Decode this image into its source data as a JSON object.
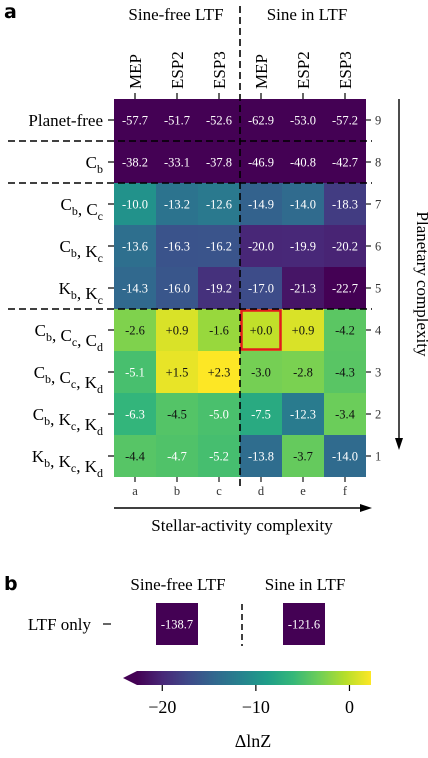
{
  "colors": {
    "viridis": [
      "#440154",
      "#482878",
      "#3e4a89",
      "#31688e",
      "#26828e",
      "#1f9e89",
      "#35b779",
      "#6ece58",
      "#b5de2b",
      "#fde725"
    ],
    "highlight": "#e41a1c",
    "text_on_dark": "#ffffff",
    "text_on_light": "#111111"
  },
  "chart_data": [
    {
      "type": "heatmap",
      "panel_label": "a",
      "group_labels": [
        "Sine-free LTF",
        "Sine in LTF"
      ],
      "column_labels": [
        "MEP",
        "ESP2",
        "ESP3",
        "MEP",
        "ESP2",
        "ESP3"
      ],
      "column_letters": [
        "a",
        "b",
        "c",
        "d",
        "e",
        "f"
      ],
      "row_labels": [
        "Planet-free",
        "Cb",
        "Cb, Cc",
        "Cb, Kc",
        "Kb, Kc",
        "Cb, Cc, Cd",
        "Cb, Cc, Kd",
        "Cb, Kc, Kd",
        "Kb, Kc, Kd"
      ],
      "row_label_parts": [
        [
          [
            "Planet-free",
            ""
          ]
        ],
        [
          [
            "C",
            "b"
          ]
        ],
        [
          [
            "C",
            "b"
          ],
          [
            "C",
            "c"
          ]
        ],
        [
          [
            "C",
            "b"
          ],
          [
            "K",
            "c"
          ]
        ],
        [
          [
            "K",
            "b"
          ],
          [
            "K",
            "c"
          ]
        ],
        [
          [
            "C",
            "b"
          ],
          [
            "C",
            "c"
          ],
          [
            "C",
            "d"
          ]
        ],
        [
          [
            "C",
            "b"
          ],
          [
            "C",
            "c"
          ],
          [
            "K",
            "d"
          ]
        ],
        [
          [
            "C",
            "b"
          ],
          [
            "K",
            "c"
          ],
          [
            "K",
            "d"
          ]
        ],
        [
          [
            "K",
            "b"
          ],
          [
            "K",
            "c"
          ],
          [
            "K",
            "d"
          ]
        ]
      ],
      "row_numbers": [
        "9",
        "8",
        "7",
        "6",
        "5",
        "4",
        "3",
        "2",
        "1"
      ],
      "values": [
        [
          -57.7,
          -51.7,
          -52.6,
          -62.9,
          -53.0,
          -57.2
        ],
        [
          -38.2,
          -33.1,
          -37.8,
          -46.9,
          -40.8,
          -42.7
        ],
        [
          -10.0,
          -13.2,
          -12.6,
          -14.9,
          -14.0,
          -18.3
        ],
        [
          -13.6,
          -16.3,
          -16.2,
          -20.0,
          -19.9,
          -20.2
        ],
        [
          -14.3,
          -16.0,
          -19.2,
          -17.0,
          -21.3,
          -22.7
        ],
        [
          -2.6,
          0.9,
          -1.6,
          0.0,
          0.9,
          -4.2
        ],
        [
          -5.1,
          1.5,
          2.3,
          -3.0,
          -2.8,
          -4.3
        ],
        [
          -6.3,
          -4.5,
          -5.0,
          -7.5,
          -12.3,
          -3.4
        ],
        [
          -4.4,
          -4.7,
          -5.2,
          -13.8,
          -3.7,
          -14.0
        ]
      ],
      "labels": [
        [
          "-57.7",
          "-51.7",
          "-52.6",
          "-62.9",
          "-53.0",
          "-57.2"
        ],
        [
          "-38.2",
          "-33.1",
          "-37.8",
          "-46.9",
          "-40.8",
          "-42.7"
        ],
        [
          "-10.0",
          "-13.2",
          "-12.6",
          "-14.9",
          "-14.0",
          "-18.3"
        ],
        [
          "-13.6",
          "-16.3",
          "-16.2",
          "-20.0",
          "-19.9",
          "-20.2"
        ],
        [
          "-14.3",
          "-16.0",
          "-19.2",
          "-17.0",
          "-21.3",
          "-22.7"
        ],
        [
          "-2.6",
          "+0.9",
          "-1.6",
          "+0.0",
          "+0.9",
          "-4.2"
        ],
        [
          "-5.1",
          "+1.5",
          "+2.3",
          "-3.0",
          "-2.8",
          "-4.3"
        ],
        [
          "-6.3",
          "-4.5",
          "-5.0",
          "-7.5",
          "-12.3",
          "-3.4"
        ],
        [
          "-4.4",
          "-4.7",
          "-5.2",
          "-13.8",
          "-3.7",
          "-14.0"
        ]
      ],
      "highlighted_cell": {
        "row": 5,
        "col": 3
      },
      "ylabel": "Planetary complexity",
      "xlabel": "Stellar-activity complexity"
    },
    {
      "type": "heatmap",
      "panel_label": "b",
      "group_labels": [
        "Sine-free LTF",
        "Sine in LTF"
      ],
      "row_labels": [
        "LTF only"
      ],
      "values": [
        -138.7,
        -121.6
      ],
      "labels": [
        "-138.7",
        "-121.6"
      ]
    }
  ],
  "colorbar": {
    "label": "ΔlnZ",
    "vmin": -22.7,
    "vmax": 2.3,
    "ticks": [
      -20,
      -10,
      0
    ],
    "tick_labels": [
      "−20",
      "−10",
      "0"
    ],
    "extend": "min"
  }
}
